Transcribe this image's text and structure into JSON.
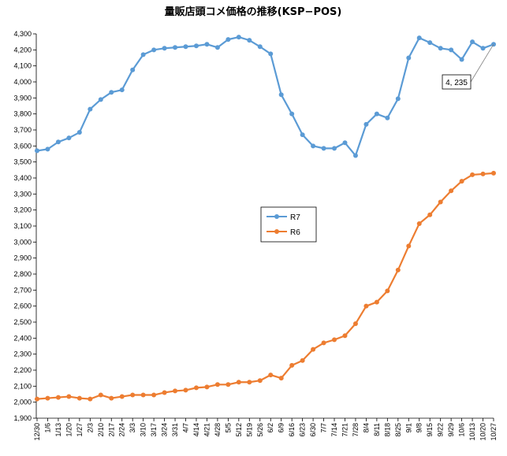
{
  "chart_data": {
    "type": "line",
    "title": "量販店頭コメ価格の推移(KSP−POS)",
    "xlabel": "",
    "ylabel": "",
    "ylim": [
      1900,
      4300
    ],
    "ytick_step": 100,
    "grid": false,
    "legend_position": "center-right",
    "categories": [
      "12/30",
      "1/6",
      "1/13",
      "1/20",
      "1/27",
      "2/3",
      "2/10",
      "2/17",
      "2/24",
      "3/3",
      "3/10",
      "3/17",
      "3/24",
      "3/31",
      "4/7",
      "4/14",
      "4/21",
      "4/28",
      "5/5",
      "5/12",
      "5/19",
      "5/26",
      "6/2",
      "6/9",
      "6/16",
      "6/23",
      "6/30",
      "7/7",
      "7/14",
      "7/21",
      "7/28",
      "8/4",
      "8/11",
      "8/18",
      "8/25",
      "9/1",
      "9/8",
      "9/15",
      "9/22",
      "9/29",
      "10/6",
      "10/13",
      "10/20",
      "10/27"
    ],
    "series": [
      {
        "name": "R7",
        "color": "#5b9bd5",
        "values": [
          3570,
          3580,
          3625,
          3650,
          3685,
          3830,
          3890,
          3935,
          3950,
          4075,
          4170,
          4200,
          4210,
          4215,
          4220,
          4225,
          4235,
          4215,
          4265,
          4280,
          4260,
          4220,
          4175,
          3920,
          3800,
          3670,
          3600,
          3585,
          3585,
          3620,
          3540,
          3735,
          3800,
          3775,
          3895,
          4150,
          4275,
          4245,
          4210,
          4200,
          4140,
          4250,
          4210,
          4235
        ]
      },
      {
        "name": "R6",
        "color": "#ed7d31",
        "values": [
          2020,
          2025,
          2030,
          2035,
          2025,
          2020,
          2045,
          2025,
          2035,
          2045,
          2045,
          2045,
          2060,
          2070,
          2075,
          2090,
          2095,
          2110,
          2110,
          2125,
          2125,
          2135,
          2170,
          2150,
          2230,
          2260,
          2330,
          2370,
          2390,
          2415,
          2490,
          2600,
          2625,
          2695,
          2825,
          2975,
          3115,
          3170,
          3250,
          3320,
          3380,
          3420,
          3425,
          3430
        ]
      }
    ],
    "annotations": [
      {
        "text": "4, 235",
        "series": "R7",
        "category": "10/27"
      }
    ]
  },
  "y_tick_labels": [
    "1,900",
    "2,000",
    "2,100",
    "2,200",
    "2,300",
    "2,400",
    "2,500",
    "2,600",
    "2,700",
    "2,800",
    "2,900",
    "3,000",
    "3,100",
    "3,200",
    "3,300",
    "3,400",
    "3,500",
    "3,600",
    "3,700",
    "3,800",
    "3,900",
    "4,000",
    "4,100",
    "4,200",
    "4,300"
  ]
}
